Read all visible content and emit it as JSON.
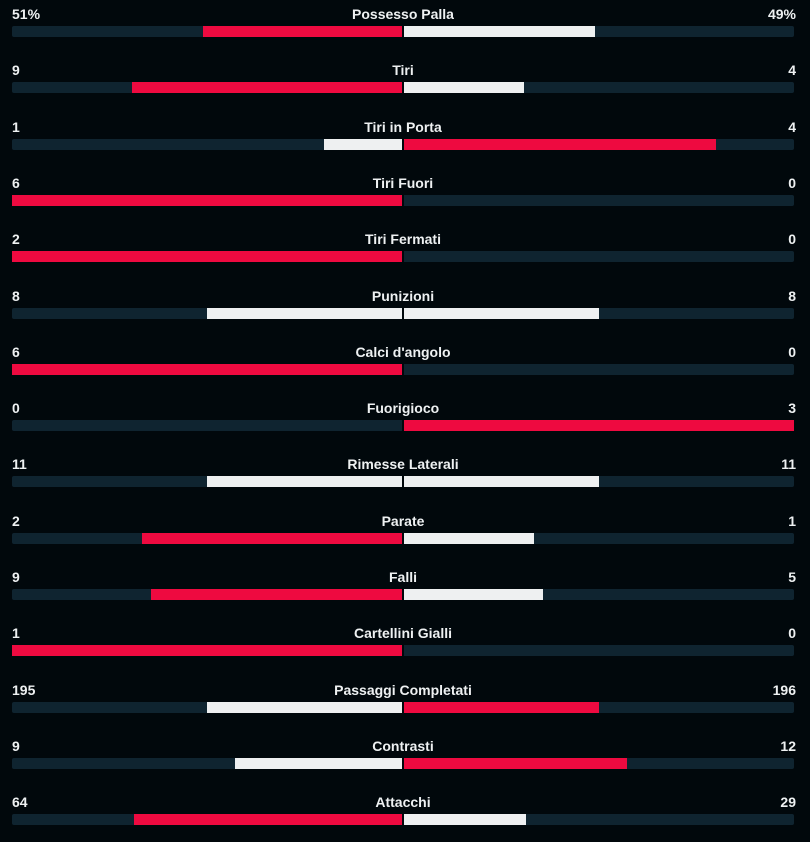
{
  "colors": {
    "lead": "#ee0a40",
    "trail": "#eef0f1",
    "track": "#0f2430",
    "background": "#01080c"
  },
  "stats": [
    {
      "label": "Possesso Palla",
      "home": "51%",
      "away": "49%",
      "home_fill": 0.51,
      "away_fill": 0.49,
      "home_color": "red",
      "away_color": "white"
    },
    {
      "label": "Tiri",
      "home": "9",
      "away": "4",
      "home_fill": 0.692,
      "away_fill": 0.308,
      "home_color": "red",
      "away_color": "white"
    },
    {
      "label": "Tiri in Porta",
      "home": "1",
      "away": "4",
      "home_fill": 0.2,
      "away_fill": 0.8,
      "home_color": "white",
      "away_color": "red"
    },
    {
      "label": "Tiri Fuori",
      "home": "6",
      "away": "0",
      "home_fill": 1.0,
      "away_fill": 0.0,
      "home_color": "red",
      "away_color": "white"
    },
    {
      "label": "Tiri Fermati",
      "home": "2",
      "away": "0",
      "home_fill": 1.0,
      "away_fill": 0.0,
      "home_color": "red",
      "away_color": "white"
    },
    {
      "label": "Punizioni",
      "home": "8",
      "away": "8",
      "home_fill": 0.5,
      "away_fill": 0.5,
      "home_color": "white",
      "away_color": "white"
    },
    {
      "label": "Calci d'angolo",
      "home": "6",
      "away": "0",
      "home_fill": 1.0,
      "away_fill": 0.0,
      "home_color": "red",
      "away_color": "white"
    },
    {
      "label": "Fuorigioco",
      "home": "0",
      "away": "3",
      "home_fill": 0.0,
      "away_fill": 1.0,
      "home_color": "white",
      "away_color": "red"
    },
    {
      "label": "Rimesse Laterali",
      "home": "11",
      "away": "11",
      "home_fill": 0.5,
      "away_fill": 0.5,
      "home_color": "white",
      "away_color": "white"
    },
    {
      "label": "Parate",
      "home": "2",
      "away": "1",
      "home_fill": 0.667,
      "away_fill": 0.333,
      "home_color": "red",
      "away_color": "white"
    },
    {
      "label": "Falli",
      "home": "9",
      "away": "5",
      "home_fill": 0.643,
      "away_fill": 0.357,
      "home_color": "red",
      "away_color": "white"
    },
    {
      "label": "Cartellini Gialli",
      "home": "1",
      "away": "0",
      "home_fill": 1.0,
      "away_fill": 0.0,
      "home_color": "red",
      "away_color": "white"
    },
    {
      "label": "Passaggi Completati",
      "home": "195",
      "away": "196",
      "home_fill": 0.499,
      "away_fill": 0.501,
      "home_color": "white",
      "away_color": "red"
    },
    {
      "label": "Contrasti",
      "home": "9",
      "away": "12",
      "home_fill": 0.429,
      "away_fill": 0.571,
      "home_color": "white",
      "away_color": "red"
    },
    {
      "label": "Attacchi",
      "home": "64",
      "away": "29",
      "home_fill": 0.688,
      "away_fill": 0.312,
      "home_color": "red",
      "away_color": "white"
    }
  ]
}
